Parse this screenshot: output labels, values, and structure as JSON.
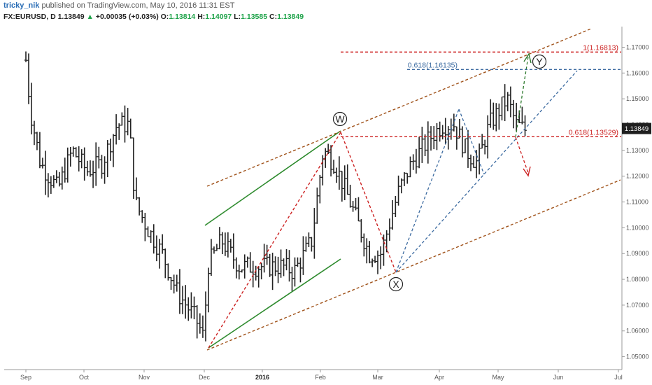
{
  "header": {
    "author": "tricky_nik",
    "published_text": "published on TradingView.com, May 10, 2016 11:31 EST",
    "symbol": "FX:EURUSD, D",
    "last": "1.13849",
    "arrow": "▲",
    "change": "+0.00035 (+0.03%)",
    "open_label": "O:",
    "open": "1.13814",
    "high_label": "H:",
    "high": "1.14097",
    "low_label": "L:",
    "low": "1.13585",
    "close_label": "C:",
    "close": "1.13849"
  },
  "colors": {
    "bars": "#222222",
    "green_channel": "#2e8b2e",
    "brown_channel": "#a0521a",
    "red_fib": "#cc2020",
    "blue_fib": "#3b6aa0",
    "price_box": "#1f1f1f"
  },
  "chart_data": {
    "type": "ohlc",
    "symbol": "FX:EURUSD",
    "interval": "D",
    "x_tick_labels": [
      "Sep",
      "Oct",
      "Nov",
      "Dec",
      "2016",
      "Feb",
      "Mar",
      "Apr",
      "May",
      "Jun",
      "Jul"
    ],
    "y_tick_labels": [
      "1.17000",
      "1.16000",
      "1.15000",
      "1.14000",
      "1.13000",
      "1.12000",
      "1.11000",
      "1.10000",
      "1.09000",
      "1.08000",
      "1.07000",
      "1.06000",
      "1.05000"
    ],
    "ylim": [
      1.045,
      1.178
    ],
    "last_price": "1.13849",
    "price_path": [
      {
        "month_pos": 0.0,
        "price": 1.165
      },
      {
        "month_pos": 0.08,
        "price": 1.145
      },
      {
        "month_pos": 0.25,
        "price": 1.125
      },
      {
        "month_pos": 0.55,
        "price": 1.115
      },
      {
        "month_pos": 0.8,
        "price": 1.13
      },
      {
        "month_pos": 1.05,
        "price": 1.122
      },
      {
        "month_pos": 1.3,
        "price": 1.125
      },
      {
        "month_pos": 1.55,
        "price": 1.14
      },
      {
        "month_pos": 1.75,
        "price": 1.14
      },
      {
        "month_pos": 1.85,
        "price": 1.11
      },
      {
        "month_pos": 2.05,
        "price": 1.1
      },
      {
        "month_pos": 2.3,
        "price": 1.09
      },
      {
        "month_pos": 2.55,
        "price": 1.075
      },
      {
        "month_pos": 2.85,
        "price": 1.065
      },
      {
        "month_pos": 3.0,
        "price": 1.057
      },
      {
        "month_pos": 3.05,
        "price": 1.085
      },
      {
        "month_pos": 3.3,
        "price": 1.095
      },
      {
        "month_pos": 3.6,
        "price": 1.085
      },
      {
        "month_pos": 4.0,
        "price": 1.085
      },
      {
        "month_pos": 4.35,
        "price": 1.085
      },
      {
        "month_pos": 4.55,
        "price": 1.083
      },
      {
        "month_pos": 4.85,
        "price": 1.095
      },
      {
        "month_pos": 5.05,
        "price": 1.13
      },
      {
        "month_pos": 5.25,
        "price": 1.125
      },
      {
        "month_pos": 5.55,
        "price": 1.108
      },
      {
        "month_pos": 5.85,
        "price": 1.09
      },
      {
        "month_pos": 6.05,
        "price": 1.09
      },
      {
        "month_pos": 6.35,
        "price": 1.115
      },
      {
        "month_pos": 6.55,
        "price": 1.125
      },
      {
        "month_pos": 6.85,
        "price": 1.135
      },
      {
        "month_pos": 7.05,
        "price": 1.14
      },
      {
        "month_pos": 7.25,
        "price": 1.14
      },
      {
        "month_pos": 7.45,
        "price": 1.13
      },
      {
        "month_pos": 7.65,
        "price": 1.125
      },
      {
        "month_pos": 7.85,
        "price": 1.14
      },
      {
        "month_pos": 8.0,
        "price": 1.145
      },
      {
        "month_pos": 8.15,
        "price": 1.15
      },
      {
        "month_pos": 8.3,
        "price": 1.14
      },
      {
        "month_pos": 8.45,
        "price": 1.138
      }
    ],
    "fib_levels": [
      {
        "label": "1(1.16813)",
        "price": 1.16813
      },
      {
        "label": "0.618(1.16135)",
        "price": 1.16135
      },
      {
        "label": "0.618(1.13529)",
        "price": 1.13529
      }
    ],
    "wave_labels": [
      "W",
      "X",
      "Y"
    ]
  }
}
